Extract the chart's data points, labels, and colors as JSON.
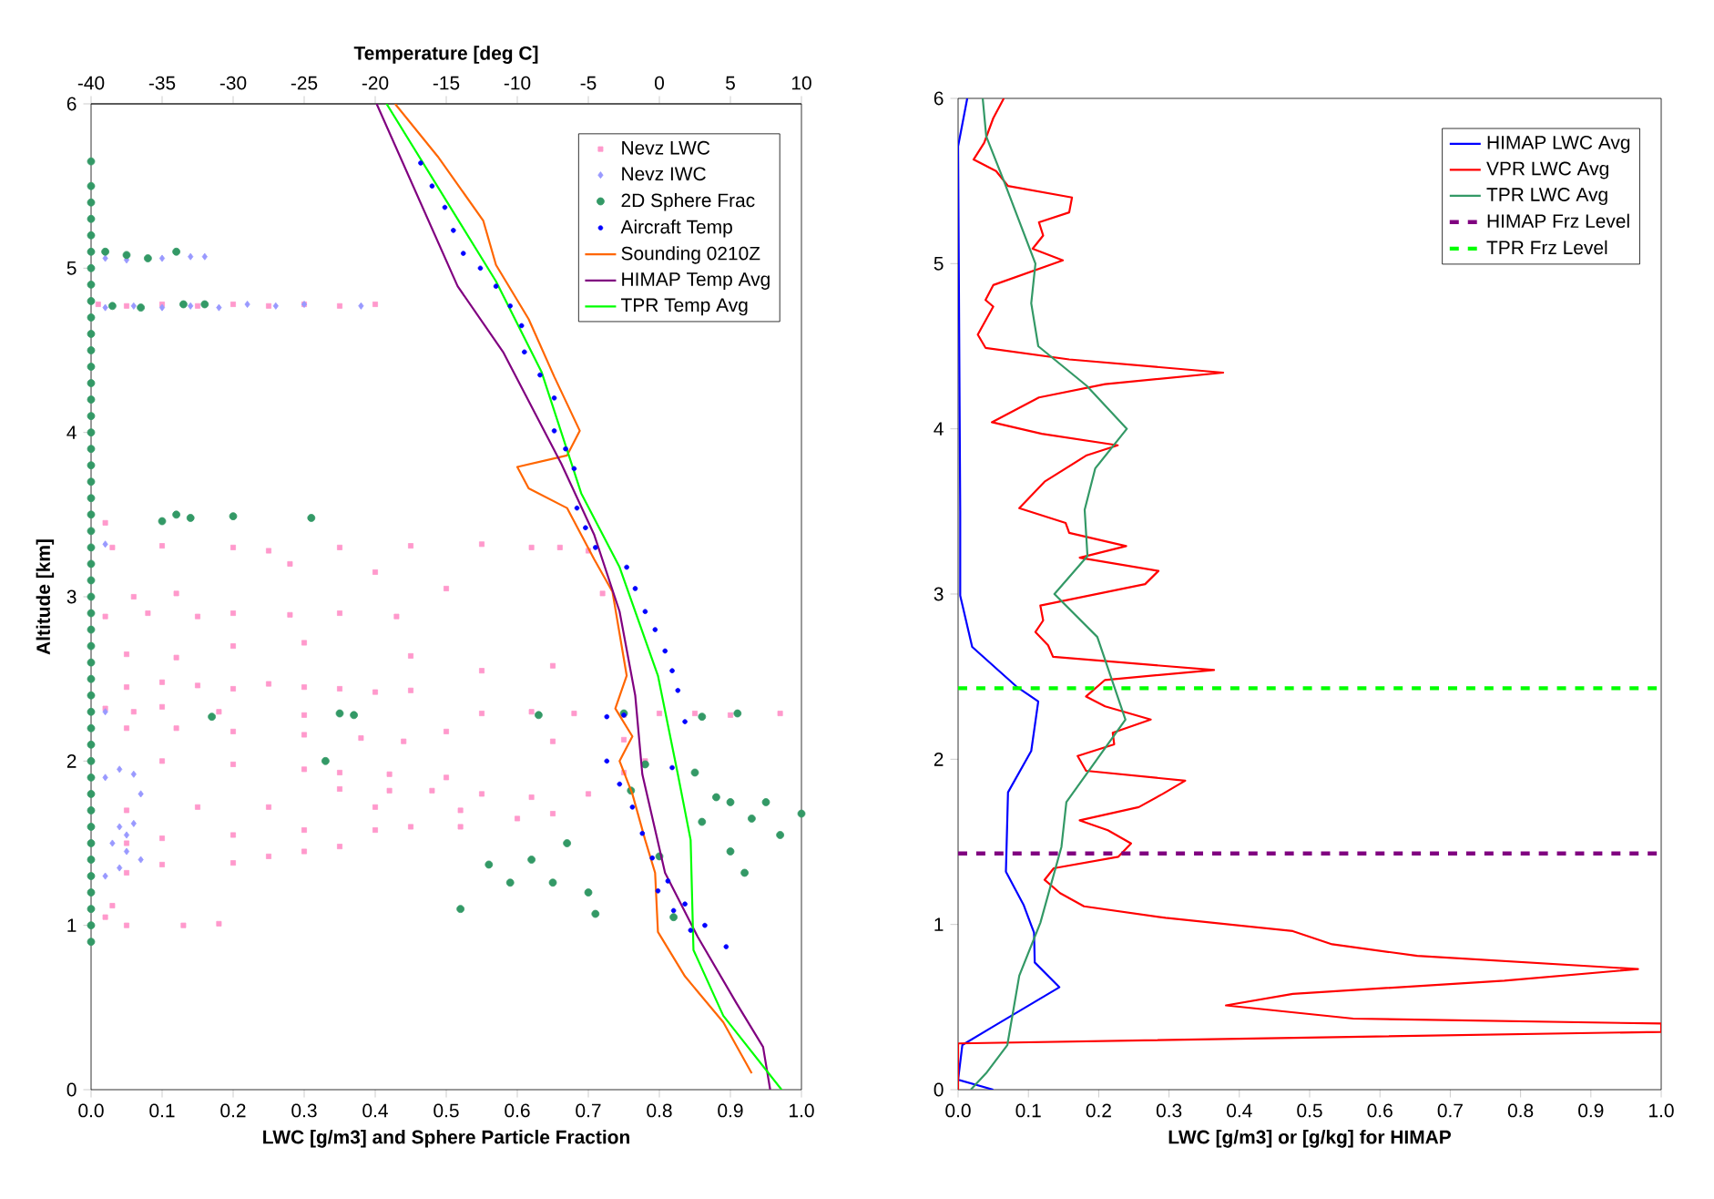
{
  "chart_data": [
    {
      "type": "scatter",
      "xlabel": "LWC [g/m3] and Sphere Particle Fraction",
      "x2label": "Temperature [deg C]",
      "ylabel": "Altitude [km]",
      "xlim": [
        0,
        1
      ],
      "xticks": [
        {
          "value": 0,
          "label": "0.0"
        },
        {
          "value": 0.1,
          "label": "0.1"
        },
        {
          "value": 0.2,
          "label": "0.2"
        },
        {
          "value": 0.3,
          "label": "0.3"
        },
        {
          "value": 0.4,
          "label": "0.4"
        },
        {
          "value": 0.5,
          "label": "0.5"
        },
        {
          "value": 0.6,
          "label": "0.6"
        },
        {
          "value": 0.7,
          "label": "0.7"
        },
        {
          "value": 0.8,
          "label": "0.8"
        },
        {
          "value": 0.9,
          "label": "0.9"
        },
        {
          "value": 1,
          "label": "1.0"
        }
      ],
      "x2lim": [
        -40,
        10
      ],
      "x2ticks": [
        -40,
        -35,
        -30,
        -25,
        -20,
        -15,
        -10,
        -5,
        0,
        5,
        10
      ],
      "ylim": [
        0,
        6
      ],
      "yticks": [
        0,
        1,
        2,
        3,
        4,
        5,
        6
      ],
      "legend": "top right",
      "series": [
        {
          "name": "Nevz LWC",
          "type": "scatter",
          "marker": "square",
          "color": "#ff99cc",
          "x": [
            0.01,
            0.05,
            0.1,
            0.15,
            0.2,
            0.25,
            0.3,
            0.35,
            0.4,
            0.02,
            0.03,
            0.1,
            0.2,
            0.25,
            0.35,
            0.45,
            0.55,
            0.62,
            0.7,
            0.28,
            0.4,
            0.5,
            0.72,
            0.66,
            0.02,
            0.08,
            0.15,
            0.2,
            0.28,
            0.35,
            0.43,
            0.06,
            0.12,
            0.05,
            0.12,
            0.2,
            0.3,
            0.45,
            0.55,
            0.65,
            0.05,
            0.1,
            0.15,
            0.2,
            0.25,
            0.3,
            0.35,
            0.4,
            0.45,
            0.02,
            0.06,
            0.1,
            0.18,
            0.3,
            0.55,
            0.62,
            0.68,
            0.75,
            0.8,
            0.85,
            0.9,
            0.97,
            0.05,
            0.12,
            0.2,
            0.3,
            0.38,
            0.44,
            0.5,
            0.65,
            0.75,
            0.1,
            0.2,
            0.3,
            0.35,
            0.42,
            0.5,
            0.35,
            0.42,
            0.48,
            0.55,
            0.62,
            0.7,
            0.75,
            0.78,
            0.05,
            0.15,
            0.25,
            0.4,
            0.52,
            0.6,
            0.65,
            0.05,
            0.1,
            0.2,
            0.3,
            0.4,
            0.45,
            0.52,
            0.05,
            0.1,
            0.2,
            0.25,
            0.3,
            0.35,
            0.02,
            0.03,
            0.05,
            0.13,
            0.18
          ],
          "values": [
            4.78,
            4.77,
            4.78,
            4.77,
            4.78,
            4.77,
            4.78,
            4.77,
            4.78,
            3.45,
            3.3,
            3.31,
            3.3,
            3.28,
            3.3,
            3.31,
            3.32,
            3.3,
            3.28,
            3.2,
            3.15,
            3.05,
            3.02,
            3.3,
            2.88,
            2.9,
            2.88,
            2.9,
            2.89,
            2.9,
            2.88,
            3.0,
            3.02,
            2.65,
            2.63,
            2.7,
            2.72,
            2.64,
            2.55,
            2.58,
            2.45,
            2.48,
            2.46,
            2.44,
            2.47,
            2.45,
            2.44,
            2.42,
            2.43,
            2.32,
            2.3,
            2.33,
            2.3,
            2.28,
            2.29,
            2.3,
            2.29,
            2.28,
            2.29,
            2.29,
            2.28,
            2.29,
            2.2,
            2.2,
            2.18,
            2.16,
            2.14,
            2.12,
            2.18,
            2.12,
            2.13,
            2.0,
            1.98,
            1.95,
            1.93,
            1.92,
            1.9,
            1.83,
            1.82,
            1.82,
            1.8,
            1.78,
            1.8,
            1.93,
            2.0,
            1.7,
            1.72,
            1.72,
            1.72,
            1.7,
            1.65,
            1.68,
            1.5,
            1.53,
            1.55,
            1.58,
            1.58,
            1.6,
            1.6,
            1.32,
            1.37,
            1.38,
            1.42,
            1.45,
            1.48,
            1.05,
            1.12,
            1.0,
            1.0,
            1.01
          ]
        },
        {
          "name": "Nevz IWC",
          "type": "scatter",
          "marker": "diamond",
          "color": "#9999ff",
          "x": [
            0.02,
            0.05,
            0.1,
            0.14,
            0.16,
            0.02,
            0.06,
            0.1,
            0.14,
            0.18,
            0.22,
            0.26,
            0.3,
            0.38,
            0.02,
            0.02,
            0.02,
            0.04,
            0.06,
            0.07,
            0.04,
            0.06,
            0.03,
            0.05,
            0.07,
            0.02,
            0.04,
            0.05
          ],
          "values": [
            5.06,
            5.05,
            5.06,
            5.07,
            5.07,
            4.76,
            4.77,
            4.76,
            4.77,
            4.76,
            4.78,
            4.77,
            4.78,
            4.77,
            3.32,
            2.3,
            1.9,
            1.95,
            1.92,
            1.8,
            1.6,
            1.62,
            1.5,
            1.45,
            1.4,
            1.3,
            1.35,
            1.55
          ]
        },
        {
          "name": "2D Sphere Frac",
          "type": "scatter",
          "marker": "circle",
          "color": "#339966",
          "x": [
            0,
            0,
            0,
            0,
            0,
            0,
            0,
            0,
            0,
            0,
            0,
            0,
            0,
            0,
            0,
            0,
            0,
            0,
            0,
            0,
            0,
            0,
            0,
            0,
            0,
            0,
            0,
            0,
            0,
            0,
            0,
            0,
            0,
            0,
            0,
            0,
            0,
            0,
            0,
            0,
            0,
            0,
            0,
            0,
            0,
            0,
            0,
            0,
            0.02,
            0.05,
            0.08,
            0.12,
            0.03,
            0.07,
            0.13,
            0.16,
            0.14,
            0.12,
            0.2,
            0.31,
            0.1,
            0.17,
            0.35,
            0.37,
            0.33,
            0.52,
            0.56,
            0.59,
            0.62,
            0.65,
            0.7,
            0.71,
            0.67,
            0.82,
            0.78,
            0.76,
            0.85,
            0.88,
            0.86,
            0.9,
            0.93,
            0.95,
            0.97,
            1.0,
            0.9,
            0.92,
            0.8,
            0.75,
            0.91,
            0.86,
            0.63
          ],
          "values": [
            0.9,
            1.0,
            1.1,
            1.2,
            1.3,
            1.4,
            1.5,
            1.6,
            1.7,
            1.8,
            1.9,
            2.0,
            2.1,
            2.2,
            2.3,
            2.4,
            2.5,
            2.6,
            2.7,
            2.8,
            2.9,
            3.0,
            3.1,
            3.2,
            3.3,
            3.4,
            3.5,
            3.6,
            3.7,
            3.8,
            3.9,
            4.0,
            4.1,
            4.2,
            4.3,
            4.4,
            4.5,
            4.6,
            4.7,
            4.8,
            4.9,
            5.0,
            5.1,
            5.2,
            5.3,
            5.4,
            5.5,
            5.65,
            5.1,
            5.08,
            5.06,
            5.1,
            4.77,
            4.76,
            4.78,
            4.78,
            3.48,
            3.5,
            3.49,
            3.48,
            3.46,
            2.27,
            2.29,
            2.28,
            2.0,
            1.1,
            1.37,
            1.26,
            1.4,
            1.26,
            1.2,
            1.07,
            1.5,
            1.05,
            1.98,
            1.82,
            1.93,
            1.78,
            1.63,
            1.75,
            1.65,
            1.75,
            1.55,
            1.68,
            1.45,
            1.32,
            1.42,
            2.29,
            2.29,
            2.27,
            2.28
          ]
        },
        {
          "name": "Aircraft Temp",
          "type": "scatter",
          "marker": "circle",
          "axis": "x2",
          "color": "#0000ff",
          "x": [
            -16.8,
            -16.0,
            -15.1,
            -14.5,
            -13.8,
            -12.6,
            -11.5,
            -10.5,
            -9.7,
            -9.5,
            -8.4,
            -7.4,
            -7.4,
            -6.6,
            -6.0,
            -5.8,
            -5.2,
            -4.5,
            -2.3,
            -1.7,
            -1.0,
            -0.3,
            0.4,
            0.9,
            1.3,
            1.8,
            -3.7,
            -2.5,
            0.9,
            -3.7,
            -2.8,
            -1.9,
            -1.2,
            -0.5,
            0.6,
            1.8,
            3.2,
            4.7,
            -0.1,
            1.0,
            2.2
          ],
          "values": [
            5.64,
            5.5,
            5.37,
            5.23,
            5.09,
            5.0,
            4.89,
            4.77,
            4.65,
            4.49,
            4.35,
            4.21,
            4.01,
            3.9,
            3.78,
            3.54,
            3.42,
            3.3,
            3.18,
            3.05,
            2.91,
            2.8,
            2.67,
            2.55,
            2.43,
            2.24,
            2.27,
            2.28,
            1.96,
            2.0,
            1.86,
            1.72,
            1.56,
            1.41,
            1.27,
            1.13,
            1.0,
            0.87,
            1.21,
            1.09,
            0.97
          ]
        },
        {
          "name": "Sounding 0210Z",
          "type": "line",
          "marker": "none",
          "axis": "x2",
          "color": "#ff6600",
          "x": [
            -18.6,
            -15.6,
            -12.4,
            -11.5,
            -9.2,
            -7.4,
            -5.6,
            -6.5,
            -10.0,
            -9.2,
            -6.5,
            -4.6,
            -3.3,
            -2.3,
            -3.1,
            -1.9,
            -2.8,
            -1.9,
            -1.0,
            -0.3,
            -0.1,
            1.8,
            4.5,
            6.5
          ],
          "values": [
            6,
            5.68,
            5.29,
            5.02,
            4.69,
            4.34,
            4.01,
            3.86,
            3.79,
            3.66,
            3.54,
            3.23,
            3.03,
            2.52,
            2.32,
            2.15,
            2.0,
            1.8,
            1.52,
            1.32,
            0.96,
            0.69,
            0.41,
            0.1
          ]
        },
        {
          "name": "HIMAP Temp Avg",
          "type": "line",
          "marker": "none",
          "axis": "x2",
          "color": "#800080",
          "x": [
            -19.9,
            -14.2,
            -11.0,
            -6.9,
            -4.6,
            -2.8,
            -1.7,
            -1.2,
            0.4,
            2.7,
            5.4,
            7.3,
            7.8
          ],
          "values": [
            6,
            4.89,
            4.49,
            3.81,
            3.38,
            2.91,
            2.4,
            1.92,
            1.32,
            0.93,
            0.53,
            0.26,
            0
          ]
        },
        {
          "name": "TPR Temp Avg",
          "type": "line",
          "marker": "none",
          "axis": "x2",
          "color": "#00ff00",
          "x": [
            -19.2,
            -11.5,
            -8.3,
            -5.5,
            -2.8,
            -0.1,
            1.3,
            2.2,
            2.4,
            4.5,
            8.6
          ],
          "values": [
            6,
            4.92,
            4.37,
            3.63,
            3.18,
            2.52,
            1.92,
            1.52,
            0.85,
            0.45,
            0
          ]
        }
      ]
    },
    {
      "type": "line",
      "xlabel": "LWC [g/m3] or [g/kg] for HIMAP",
      "xlim": [
        0,
        1
      ],
      "xticks": [
        {
          "value": 0,
          "label": "0.0"
        },
        {
          "value": 0.1,
          "label": "0.1"
        },
        {
          "value": 0.2,
          "label": "0.2"
        },
        {
          "value": 0.3,
          "label": "0.3"
        },
        {
          "value": 0.4,
          "label": "0.4"
        },
        {
          "value": 0.5,
          "label": "0.5"
        },
        {
          "value": 0.6,
          "label": "0.6"
        },
        {
          "value": 0.7,
          "label": "0.7"
        },
        {
          "value": 0.8,
          "label": "0.8"
        },
        {
          "value": 0.9,
          "label": "0.9"
        },
        {
          "value": 1,
          "label": "1.0"
        }
      ],
      "ylim": [
        0,
        6
      ],
      "yticks": [
        0,
        1,
        2,
        3,
        4,
        5,
        6
      ],
      "legend": "top right",
      "series": [
        {
          "name": "HIMAP LWC Avg",
          "color": "#0000ff",
          "x": [
            0.013,
            0.0,
            0.003,
            0.003,
            0.02,
            0.083,
            0.114,
            0.104,
            0.071,
            0.068,
            0.093,
            0.108,
            0.109,
            0.144,
            0.049,
            0.006,
            0.0,
            0.05
          ],
          "values": [
            6,
            5.71,
            3.5,
            2.99,
            2.68,
            2.44,
            2.35,
            2.05,
            1.8,
            1.32,
            1.12,
            0.95,
            0.77,
            0.62,
            0.38,
            0.27,
            0.06,
            0
          ]
        },
        {
          "name": "VPR LWC Avg",
          "color": "#ff0000",
          "x": [
            0.065,
            0.05,
            0.037,
            0.022,
            0.054,
            0.071,
            0.162,
            0.158,
            0.115,
            0.121,
            0.106,
            0.149,
            0.05,
            0.039,
            0.05,
            0.028,
            0.039,
            0.158,
            0.377,
            0.209,
            0.115,
            0.048,
            0.119,
            0.227,
            0.183,
            0.123,
            0.087,
            0.153,
            0.158,
            0.239,
            0.173,
            0.285,
            0.266,
            0.117,
            0.121,
            0.11,
            0.128,
            0.135,
            0.364,
            0.209,
            0.182,
            0.209,
            0.274,
            0.22,
            0.222,
            0.17,
            0.182,
            0.323,
            0.291,
            0.257,
            0.173,
            0.213,
            0.246,
            0.228,
            0.136,
            0.123,
            0.145,
            0.179,
            0.295,
            0.476,
            0.532,
            0.653,
            0.967,
            0.777,
            0.476,
            0.381,
            0.562,
            1.0,
            1.0,
            0.0,
            0.0
          ],
          "values": [
            6,
            5.88,
            5.73,
            5.63,
            5.56,
            5.47,
            5.4,
            5.31,
            5.25,
            5.17,
            5.09,
            5.02,
            4.87,
            4.78,
            4.74,
            4.57,
            4.49,
            4.42,
            4.34,
            4.27,
            4.19,
            4.04,
            3.97,
            3.9,
            3.84,
            3.68,
            3.52,
            3.43,
            3.37,
            3.29,
            3.22,
            3.14,
            3.06,
            2.93,
            2.84,
            2.77,
            2.69,
            2.62,
            2.54,
            2.48,
            2.38,
            2.32,
            2.24,
            2.16,
            2.09,
            2.02,
            1.93,
            1.87,
            1.79,
            1.71,
            1.63,
            1.57,
            1.49,
            1.41,
            1.34,
            1.27,
            1.19,
            1.11,
            1.04,
            0.96,
            0.88,
            0.81,
            0.73,
            0.66,
            0.58,
            0.51,
            0.43,
            0.4,
            0.35,
            0.28,
            0
          ]
        },
        {
          "name": "TPR LWC Avg",
          "color": "#339966",
          "x": [
            0.035,
            0.04,
            0.066,
            0.11,
            0.104,
            0.114,
            0.183,
            0.24,
            0.195,
            0.18,
            0.184,
            0.137,
            0.198,
            0.238,
            0.154,
            0.147,
            0.117,
            0.087,
            0.07,
            0.04,
            0.018
          ],
          "values": [
            6,
            5.77,
            5.49,
            5.0,
            4.76,
            4.5,
            4.26,
            4.0,
            3.76,
            3.51,
            3.23,
            3.0,
            2.74,
            2.24,
            1.74,
            1.47,
            1.01,
            0.69,
            0.27,
            0.1,
            0
          ]
        }
      ],
      "ref_lines": [
        {
          "axis": "y",
          "value": 1.43,
          "label": "HIMAP Frz Level",
          "color": "#800080",
          "line_style": "dashed"
        },
        {
          "axis": "y",
          "value": 2.43,
          "label": "TPR Frz Level",
          "color": "#00ff00",
          "line_style": "dashed"
        }
      ]
    }
  ]
}
